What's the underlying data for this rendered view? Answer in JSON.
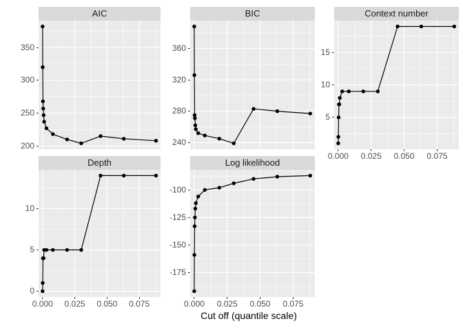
{
  "chart_data": {
    "type": "line",
    "description": "Faceted line chart with points (ggplot2 style), 5 facets over a shared x axis",
    "xlabel": "Cut off (quantile scale)",
    "x_axis": {
      "tick_values": [
        0,
        0.025,
        0.05,
        0.075
      ],
      "tick_labels": [
        "0.000",
        "0.025",
        "0.050",
        "0.075"
      ],
      "data_range": [
        0,
        0.088
      ],
      "grid": "on"
    },
    "x": [
      0,
      0.0001,
      0.0003,
      0.0005,
      0.0008,
      0.0012,
      0.003,
      0.008,
      0.019,
      0.03,
      0.045,
      0.063,
      0.088
    ],
    "facets": [
      {
        "title": "AIC",
        "row": 0,
        "col": 0,
        "show_x_axis": false,
        "y_ticks": [
          200,
          250,
          300,
          350
        ],
        "y_tick_labels": [
          "200",
          "250",
          "300",
          "350"
        ],
        "values": [
          382,
          320,
          268,
          257,
          247,
          237,
          227,
          218,
          210,
          204,
          215,
          211,
          208
        ]
      },
      {
        "title": "BIC",
        "row": 0,
        "col": 1,
        "show_x_axis": false,
        "y_ticks": [
          240,
          280,
          320,
          360
        ],
        "y_tick_labels": [
          "240",
          "280",
          "320",
          "360"
        ],
        "values": [
          388,
          326,
          275,
          271,
          262,
          257,
          252,
          249,
          245,
          239,
          283,
          280,
          277
        ]
      },
      {
        "title": "Context number",
        "row": 0,
        "col": 2,
        "show_x_axis": true,
        "y_ticks": [
          5,
          10,
          15
        ],
        "y_tick_labels": [
          "5",
          "10",
          "15"
        ],
        "values": [
          1,
          2,
          5,
          7,
          7,
          8,
          9,
          9,
          9,
          9,
          19,
          19,
          19
        ]
      },
      {
        "title": "Depth",
        "row": 1,
        "col": 0,
        "show_x_axis": true,
        "y_ticks": [
          0,
          5,
          10
        ],
        "y_tick_labels": [
          "0",
          "5",
          "10"
        ],
        "values": [
          0,
          1,
          4,
          4,
          4,
          5,
          5,
          5,
          5,
          5,
          14,
          14,
          14
        ]
      },
      {
        "title": "Log likelihood",
        "row": 1,
        "col": 1,
        "show_x_axis": true,
        "y_ticks": [
          -175,
          -150,
          -125,
          -100
        ],
        "y_tick_labels": [
          "-175",
          "-150",
          "-125",
          "-100"
        ],
        "values": [
          -192,
          -159,
          -133,
          -125,
          -117,
          -112,
          -106,
          -100,
          -98,
          -94,
          -90,
          -88,
          -87
        ]
      }
    ],
    "legend": "none",
    "colors": {
      "panel_bg": "#EBEBEB",
      "strip_bg": "#D9D9D9",
      "grid": "#FFFFFF",
      "line": "#000000",
      "point": "#000000",
      "axis_text": "#4D4D4D",
      "strip_text": "#1A1A1A",
      "axis_title": "#000000",
      "tick_mark": "#333333"
    }
  }
}
